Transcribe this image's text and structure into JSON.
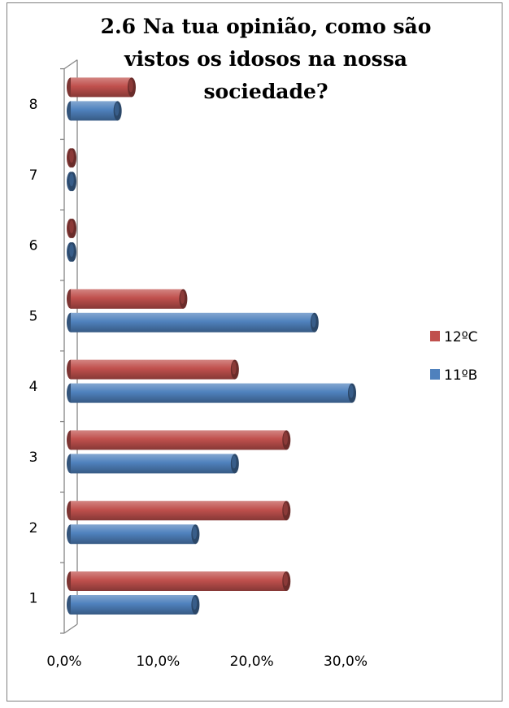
{
  "chart_data": {
    "type": "bar",
    "orientation": "horizontal",
    "title_lines": [
      "2.6 Na tua opinião, como são",
      "vistos os idosos na nossa",
      "sociedade?"
    ],
    "categories": [
      "1",
      "2",
      "3",
      "4",
      "5",
      "6",
      "7",
      "8"
    ],
    "series": [
      {
        "name": "12ºC",
        "color": "#c0504d",
        "values": [
          0.23,
          0.23,
          0.23,
          0.175,
          0.12,
          0.0,
          0.0,
          0.065
        ]
      },
      {
        "name": "11ºB",
        "color": "#4f81bd",
        "values": [
          0.133,
          0.133,
          0.175,
          0.3,
          0.26,
          0.0,
          0.0,
          0.05
        ]
      }
    ],
    "xlim": [
      0,
      0.3
    ],
    "xticks": [
      0,
      0.1,
      0.2,
      0.3
    ],
    "xtick_labels": [
      "0,0%",
      "10,0%",
      "20,0%",
      "30,0%"
    ],
    "grid": false,
    "legend_position": "right",
    "style": "3d-cylinder"
  }
}
